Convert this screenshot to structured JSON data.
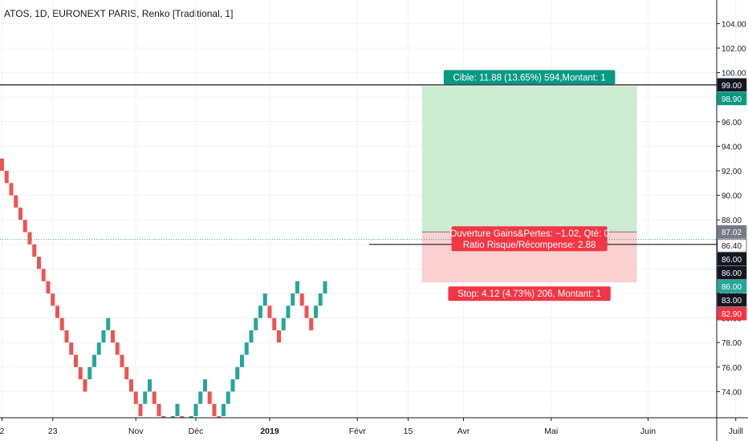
{
  "chart_data": {
    "type": "renko",
    "title": "ATOS, 1D, EURONEXT PARIS, Renko [Traditional, 1]",
    "ylim": [
      72,
      106
    ],
    "y_ticks": [
      74,
      76,
      78,
      80,
      82,
      84,
      86,
      88,
      90,
      92,
      94,
      96,
      98,
      100,
      102,
      104
    ],
    "y_tick_labels": [
      "74.00",
      "76.00",
      "78.00",
      "80.00",
      "82.00",
      "84.00",
      "86.00",
      "88.00",
      "90.00",
      "92.00",
      "94.00",
      "96.00",
      "98.00",
      "100.00",
      "102.00",
      "104.00"
    ],
    "x_labels": [
      {
        "label": "2",
        "brick": 0
      },
      {
        "label": "23",
        "brick": 11
      },
      {
        "label": "Nov",
        "brick": 29
      },
      {
        "label": "Déc",
        "brick": 42
      },
      {
        "label": "2019",
        "brick": 58,
        "bold": true
      },
      {
        "label": "Févr",
        "brick": 77
      },
      {
        "label": "15",
        "brick": 88
      },
      {
        "label": "Avr",
        "brick": 100
      },
      {
        "label": "Mai",
        "brick": 119
      },
      {
        "label": "Juin",
        "brick": 140
      },
      {
        "label": "Juill",
        "brick": 159
      }
    ],
    "bricks": [
      {
        "dir": "down",
        "count": 19
      },
      {
        "dir": "up",
        "count": 5
      },
      {
        "dir": "down",
        "count": 7
      },
      {
        "dir": "up",
        "count": 2
      },
      {
        "dir": "down",
        "count": 4
      },
      {
        "dir": "up",
        "count": 2
      },
      {
        "dir": "down",
        "count": 2
      },
      {
        "dir": "up",
        "count": 4
      },
      {
        "dir": "down",
        "count": 3
      },
      {
        "dir": "up",
        "count": 10
      },
      {
        "dir": "down",
        "count": 3
      },
      {
        "dir": "up",
        "count": 4
      },
      {
        "dir": "down",
        "count": 3
      },
      {
        "dir": "up",
        "count": 3
      }
    ],
    "brick_start_top": 93,
    "brick_size": 1,
    "current_price": 86.4,
    "horizontal_lines": [
      99.0,
      86.0
    ],
    "long_position": {
      "entry": 87.02,
      "target": 98.9,
      "stop": 82.9,
      "start_brick": 91,
      "end_brick": 138,
      "target_label": "Cible: 11.88 (13.65%) 594,Montant: 1",
      "stop_label": "Stop: 4.12 (4.73%) 206, Montant: 1",
      "pnl_label": "Ouverture Gains&Pertes: −1.02, Qté: 0",
      "ratio_label": "Ratio Risque/Récompense: 2.88"
    },
    "price_badges": [
      {
        "label": "99.00",
        "value": 99.0,
        "bg": "#131722",
        "fg": "#ffffff"
      },
      {
        "label": "98.90",
        "value": 98.9,
        "bg": "#089981",
        "fg": "#ffffff"
      },
      {
        "label": "87.02",
        "value": 87.02,
        "bg": "#787b86",
        "fg": "#ffffff"
      },
      {
        "label": "86.40",
        "value": 86.4,
        "bg": "#ffffff",
        "fg": "#131722"
      },
      {
        "label": "86.00",
        "value": 86.0,
        "bg": "#131722",
        "fg": "#ffffff"
      },
      {
        "label": "86.00",
        "value": 86.0,
        "bg": "#131722",
        "fg": "#ffffff"
      },
      {
        "label": "86.00",
        "value": 86.0,
        "bg": "#26a69a",
        "fg": "#ffffff"
      },
      {
        "label": "83.00",
        "value": 83.0,
        "bg": "#131722",
        "fg": "#ffffff"
      },
      {
        "label": "82.90",
        "value": 82.9,
        "bg": "#f23645",
        "fg": "#ffffff"
      }
    ],
    "colors": {
      "up": "#26a69a",
      "down": "#ef5350",
      "profit_zone": "#cdebd0",
      "loss_zone": "#fbd0d0",
      "target_badge": "#089981",
      "stop_badge": "#f23645"
    }
  }
}
